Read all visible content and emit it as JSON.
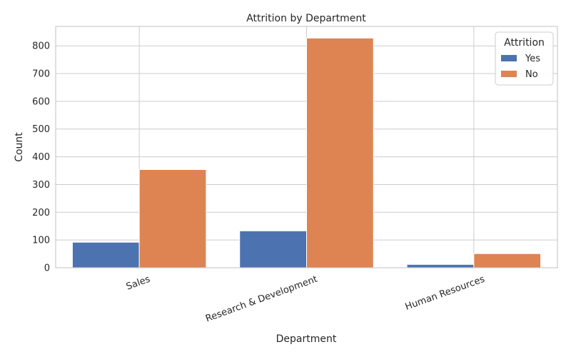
{
  "chart_data": {
    "type": "bar",
    "title": "Attrition by Department",
    "xlabel": "Department",
    "ylabel": "Count",
    "categories": [
      "Sales",
      "Research & Development",
      "Human Resources"
    ],
    "series": [
      {
        "name": "Yes",
        "values": [
          92,
          133,
          12
        ],
        "color": "#4c72b0"
      },
      {
        "name": "No",
        "values": [
          354,
          828,
          51
        ],
        "color": "#dd8452"
      }
    ],
    "ylim": [
      0,
      870
    ],
    "yticks": [
      0,
      100,
      200,
      300,
      400,
      500,
      600,
      700,
      800
    ],
    "grid": true,
    "legend": {
      "title": "Attrition",
      "position": "top-right"
    }
  }
}
